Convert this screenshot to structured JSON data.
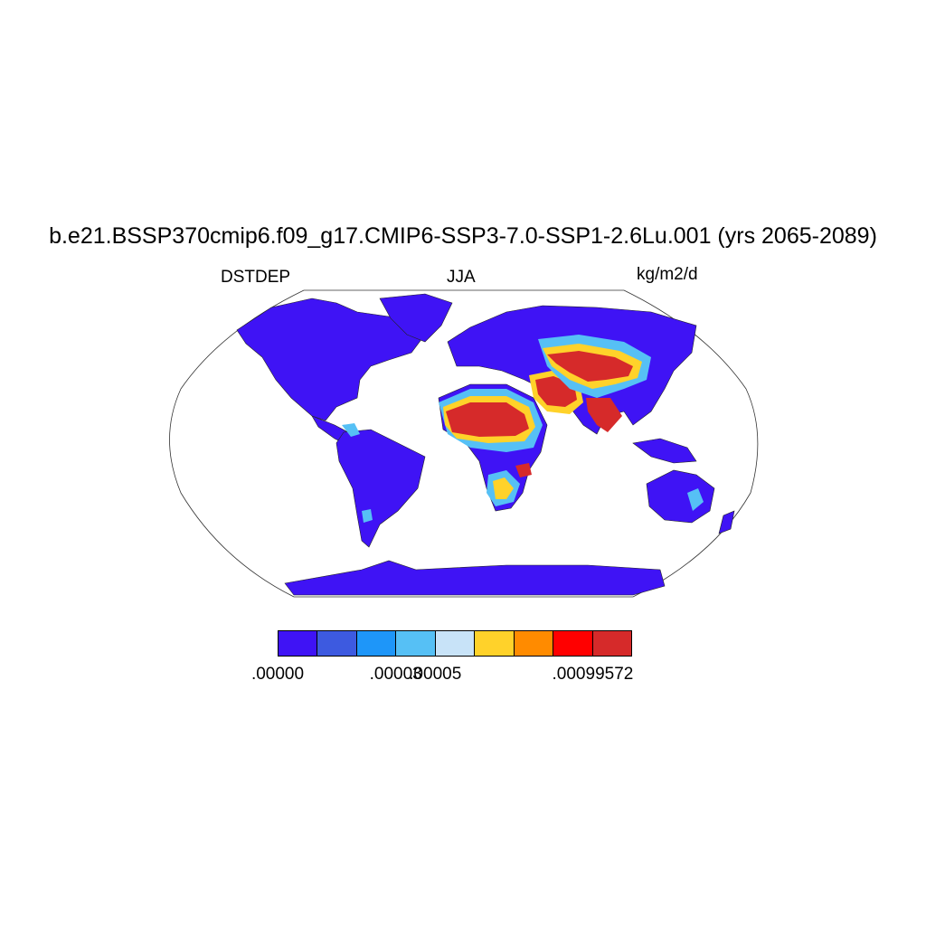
{
  "title": "b.e21.BSSP370cmip6.f09_g17.CMIP6-SSP3-7.0-SSP1-2.6Lu.001 (yrs 2065-2089)",
  "variable": "DSTDEP",
  "season": "JJA",
  "units": "kg/m2/d",
  "colorbar": {
    "colors": [
      "#3f13f5",
      "#3d5ae0",
      "#1e96f9",
      "#56c0f5",
      "#c8e3f8",
      "#ffd22a",
      "#ff8b00",
      "#ff0000",
      "#d62a2a"
    ],
    "tick_labels": [
      ".00000",
      ".00003",
      ".00005",
      ".00099572"
    ],
    "tick_boundaries": [
      0,
      3,
      4,
      8
    ]
  },
  "palette": {
    "low": "#3f13f5",
    "lowmid": "#3d5ae0",
    "mid": "#1e96f9",
    "midlight": "#56c0f5",
    "pale": "#c8e3f8",
    "yellow": "#ffd22a",
    "orange": "#ff8b00",
    "red": "#ff0000",
    "high": "#d62a2a"
  }
}
